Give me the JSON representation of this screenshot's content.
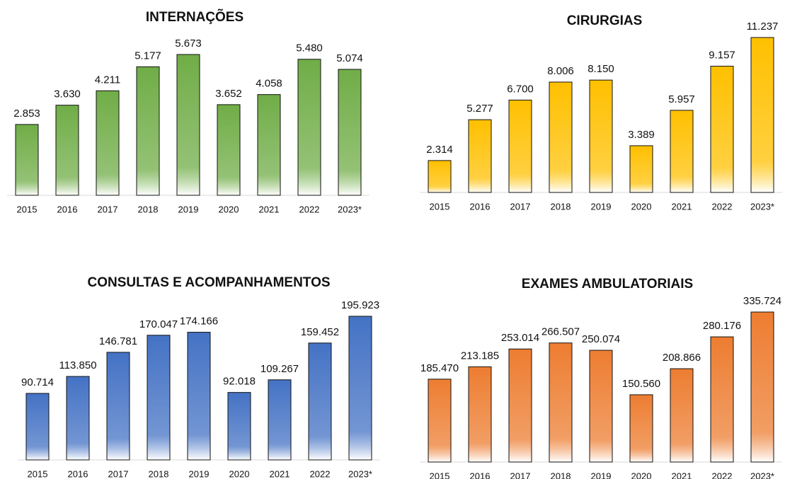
{
  "chart_data": [
    {
      "type": "bar",
      "title": "INTERNAÇÕES",
      "color": "#70ad47",
      "categories": [
        "2015",
        "2016",
        "2017",
        "2018",
        "2019",
        "2020",
        "2021",
        "2022",
        "2023*"
      ],
      "values": [
        2853,
        3630,
        4211,
        5177,
        5673,
        3652,
        4058,
        5480,
        5074
      ],
      "value_labels": [
        "2.853",
        "3.630",
        "4.211",
        "5.177",
        "5.673",
        "3.652",
        "4.058",
        "5.480",
        "5.074"
      ]
    },
    {
      "type": "bar",
      "title": "CIRURGIAS",
      "color": "#ffc000",
      "categories": [
        "2015",
        "2016",
        "2017",
        "2018",
        "2019",
        "2020",
        "2021",
        "2022",
        "2023*"
      ],
      "values": [
        2314,
        5277,
        6700,
        8006,
        8150,
        3389,
        5957,
        9157,
        11237
      ],
      "value_labels": [
        "2.314",
        "5.277",
        "6.700",
        "8.006",
        "8.150",
        "3.389",
        "5.957",
        "9.157",
        "11.237"
      ]
    },
    {
      "type": "bar",
      "title": "CONSULTAS E ACOMPANHAMENTOS",
      "color": "#4472c4",
      "categories": [
        "2015",
        "2016",
        "2017",
        "2018",
        "2019",
        "2020",
        "2021",
        "2022",
        "2023*"
      ],
      "values": [
        90714,
        113850,
        146781,
        170047,
        174166,
        92018,
        109267,
        159452,
        195923
      ],
      "value_labels": [
        "90.714",
        "113.850",
        "146.781",
        "170.047",
        "174.166",
        "92.018",
        "109.267",
        "159.452",
        "195.923"
      ]
    },
    {
      "type": "bar",
      "title": "EXAMES AMBULATORIAIS",
      "color": "#ed7d31",
      "categories": [
        "2015",
        "2016",
        "2017",
        "2018",
        "2019",
        "2020",
        "2021",
        "2022",
        "2023*"
      ],
      "values": [
        185470,
        213185,
        253014,
        266507,
        250074,
        150560,
        208866,
        280176,
        335724
      ],
      "value_labels": [
        "185.470",
        "213.185",
        "253.014",
        "266.507",
        "250.074",
        "150.560",
        "208.866",
        "280.176",
        "335.724"
      ]
    }
  ]
}
